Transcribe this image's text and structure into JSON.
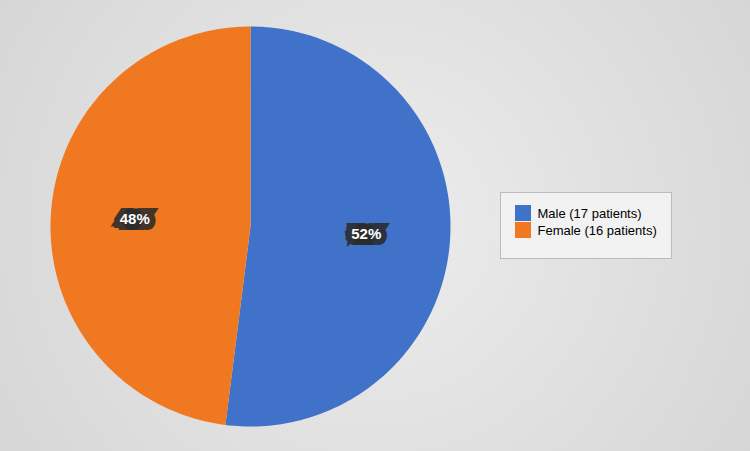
{
  "chart_data": {
    "type": "pie",
    "categories": [
      "Male (17 patients)",
      "Female (16 patients)"
    ],
    "values": [
      52,
      48
    ],
    "value_labels": [
      "52%",
      "48%"
    ],
    "colors": [
      "#3f72c8",
      "#f07820"
    ],
    "data_labels": true,
    "legend": "right"
  }
}
